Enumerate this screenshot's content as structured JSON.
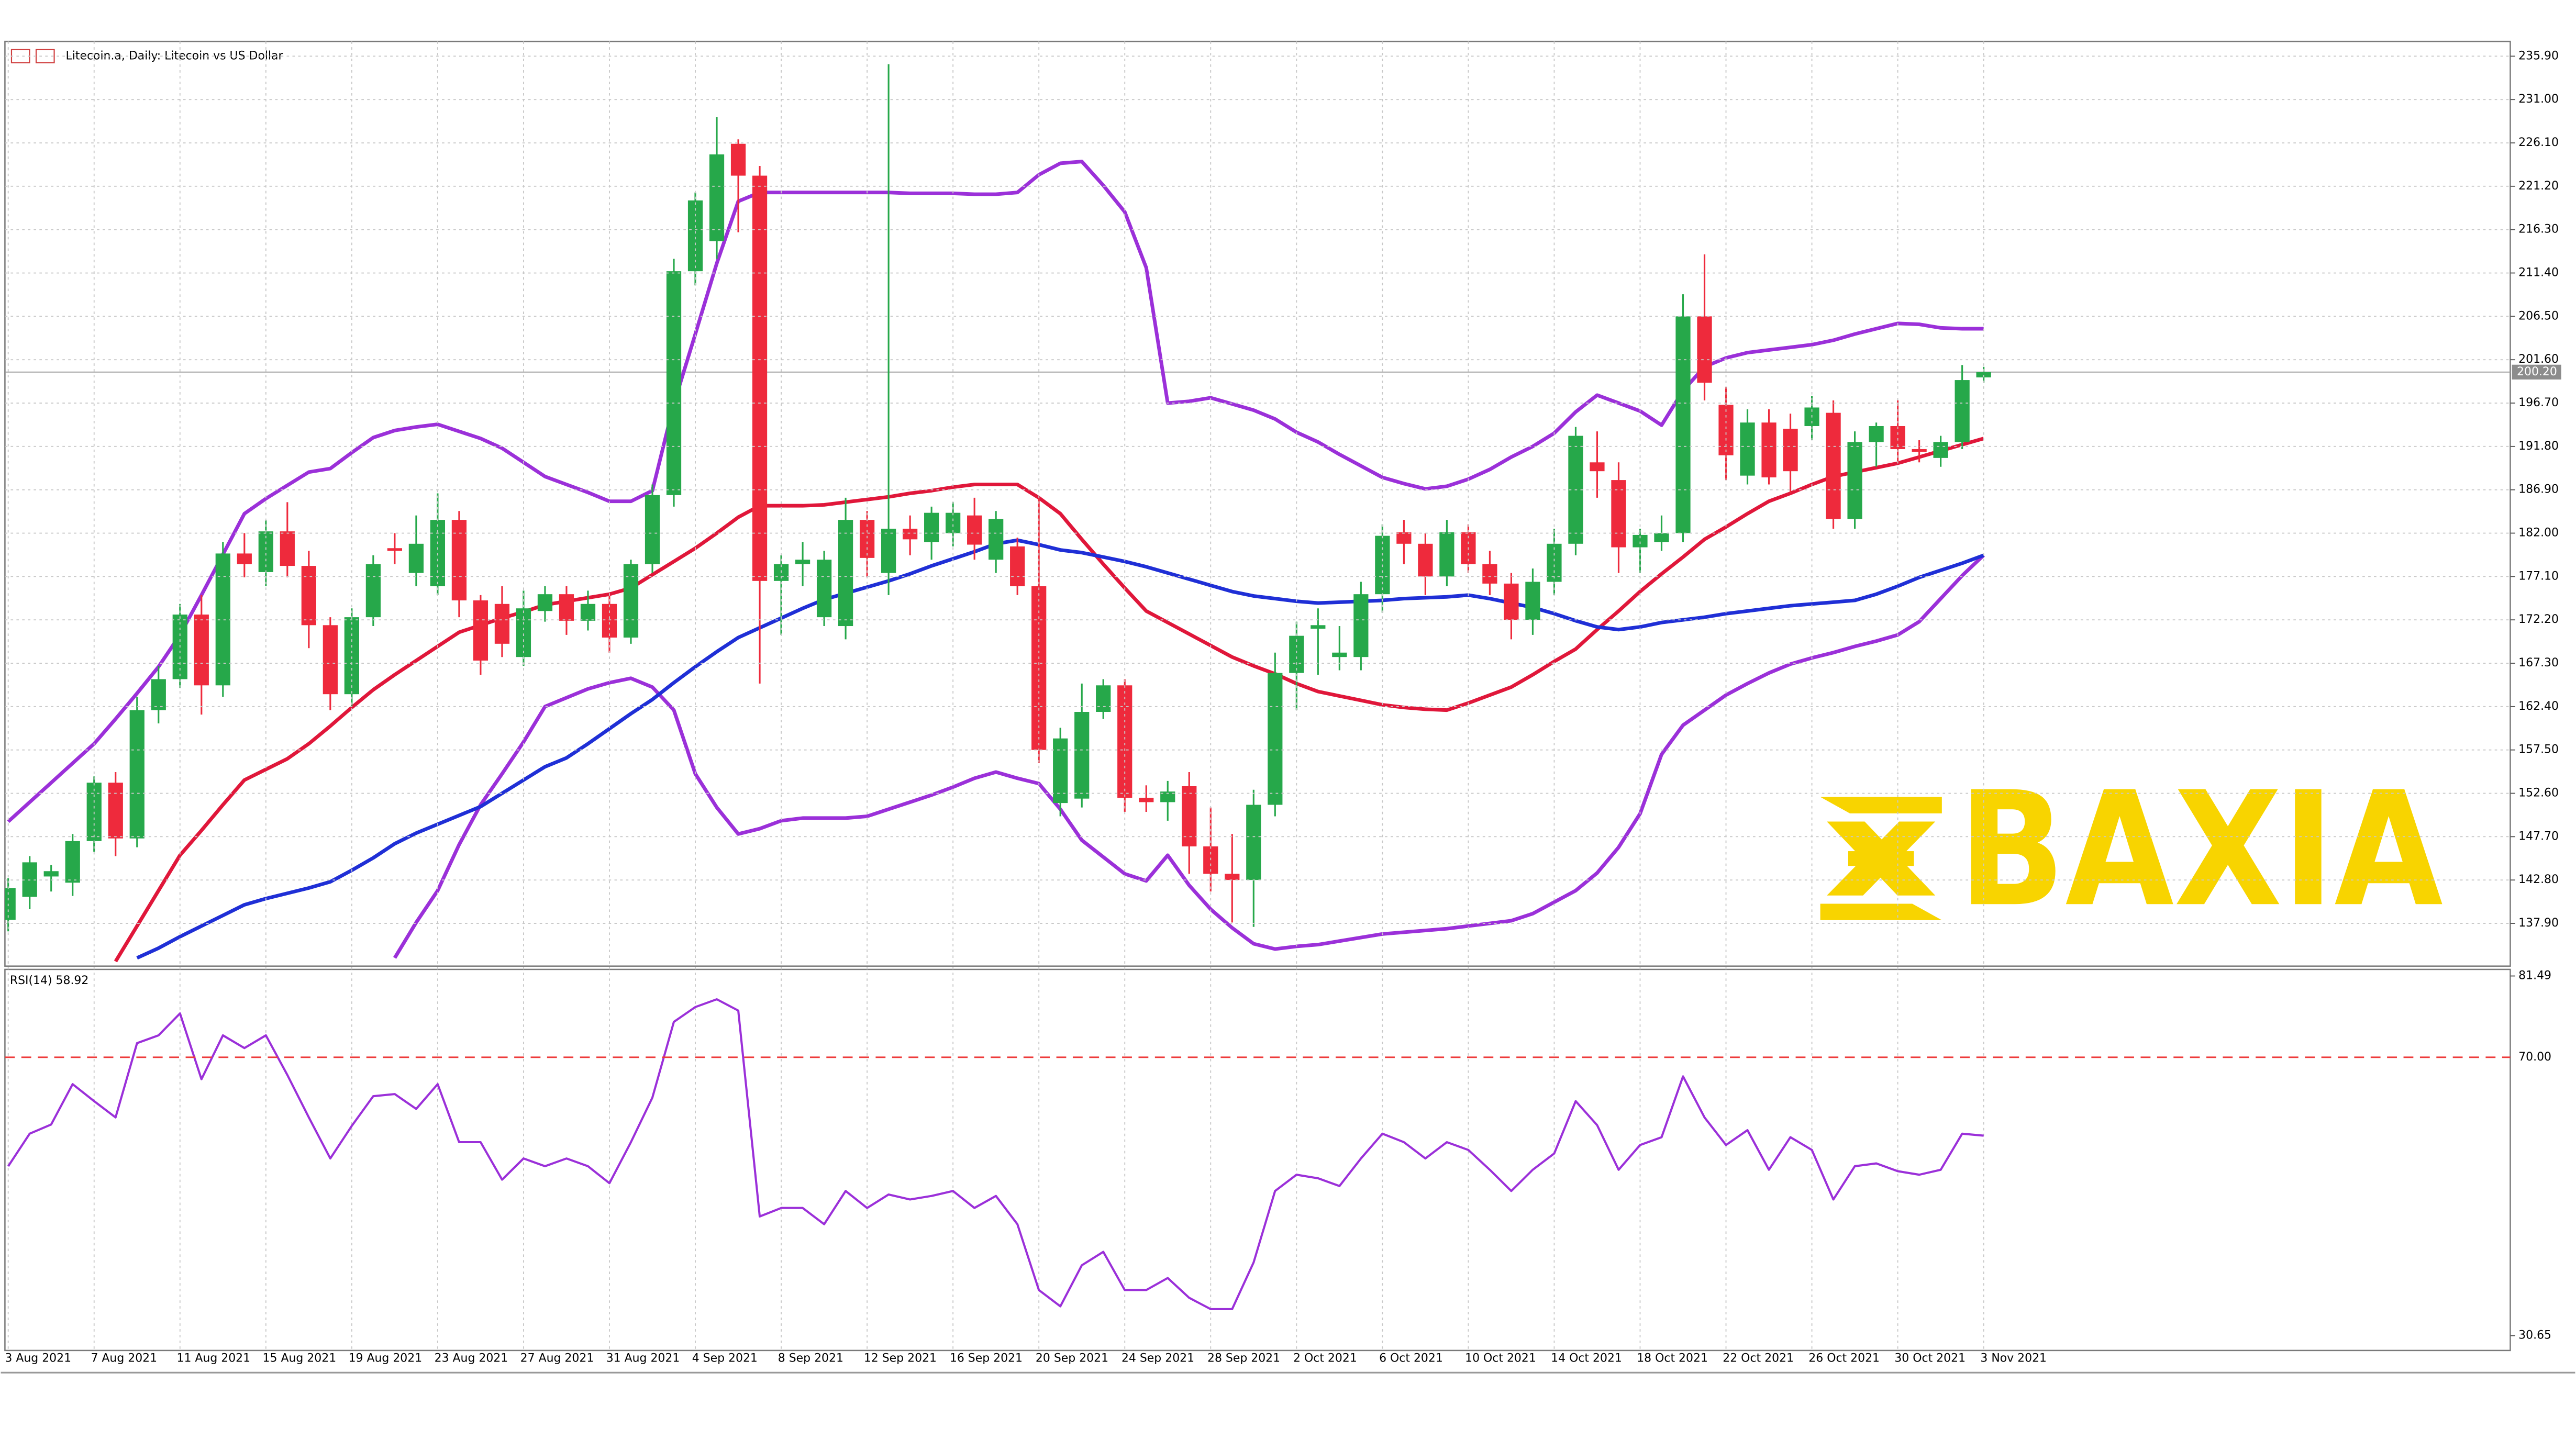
{
  "chart_data": [
    {
      "type": "candlestick",
      "title": "Litecoin.a, Daily: Litecoin vs US Dollar",
      "categories": [
        "3 Aug 2021",
        null,
        null,
        null,
        "7 Aug 2021",
        null,
        null,
        null,
        "11 Aug 2021",
        null,
        null,
        null,
        "15 Aug 2021",
        null,
        null,
        null,
        "19 Aug 2021",
        null,
        null,
        null,
        "23 Aug 2021",
        null,
        null,
        null,
        "27 Aug 2021",
        null,
        null,
        null,
        "31 Aug 2021",
        null,
        null,
        null,
        "4 Sep 2021",
        null,
        null,
        null,
        "8 Sep 2021",
        null,
        null,
        null,
        "12 Sep 2021",
        null,
        null,
        null,
        "16 Sep 2021",
        null,
        null,
        null,
        "20 Sep 2021",
        null,
        null,
        null,
        "24 Sep 2021",
        null,
        null,
        null,
        "28 Sep 2021",
        null,
        null,
        null,
        "2 Oct 2021",
        null,
        null,
        null,
        "6 Oct 2021",
        null,
        null,
        null,
        "10 Oct 2021",
        null,
        null,
        null,
        "14 Oct 2021",
        null,
        null,
        null,
        "18 Oct 2021",
        null,
        null,
        null,
        "22 Oct 2021",
        null,
        null,
        null,
        "26 Oct 2021",
        null,
        null,
        null,
        "30 Oct 2021",
        null,
        null,
        null,
        "3 Nov 2021"
      ],
      "open": [
        138.3,
        140.9,
        143.2,
        142.5,
        147.2,
        153.8,
        147.5,
        162.0,
        165.5,
        172.8,
        164.8,
        179.7,
        177.6,
        182.2,
        178.3,
        171.6,
        163.8,
        172.5,
        180.3,
        177.5,
        176.0,
        183.5,
        174.4,
        174.0,
        168.0,
        173.2,
        175.1,
        172.1,
        174.0,
        170.2,
        178.5,
        186.3,
        211.6,
        215.0,
        226.0,
        222.4,
        176.6,
        178.5,
        172.5,
        171.5,
        183.5,
        177.5,
        182.5,
        181.0,
        182.0,
        184.0,
        179.0,
        180.5,
        176.0,
        151.5,
        152.0,
        161.8,
        164.8,
        152.1,
        151.6,
        153.4,
        146.6,
        143.5,
        142.8,
        151.3,
        166.2,
        171.2,
        168.0,
        168.0,
        175.1,
        182.1,
        180.8,
        177.1,
        182.1,
        178.5,
        176.3,
        172.2,
        176.5,
        180.8,
        190.0,
        188.0,
        180.4,
        181.0,
        182.0,
        206.5,
        196.5,
        188.5,
        194.5,
        193.8,
        194.1,
        195.6,
        183.6,
        192.3,
        194.1,
        191.5,
        190.5,
        192.3,
        199.6
      ],
      "high": [
        143.0,
        145.5,
        144.5,
        148.0,
        154.5,
        155.0,
        163.5,
        167.0,
        174.0,
        175.0,
        181.0,
        182.0,
        183.5,
        185.5,
        180.0,
        172.5,
        173.5,
        179.5,
        182.0,
        184.0,
        186.5,
        184.5,
        175.0,
        176.0,
        175.5,
        176.0,
        176.0,
        175.5,
        175.0,
        179.0,
        187.5,
        213.0,
        220.5,
        229.0,
        226.5,
        223.5,
        179.5,
        181.0,
        180.0,
        186.0,
        184.5,
        235.0,
        184.0,
        185.0,
        185.5,
        186.0,
        184.5,
        181.5,
        186.0,
        160.0,
        165.0,
        165.5,
        165.5,
        153.5,
        154.0,
        155.0,
        151.0,
        148.0,
        153.0,
        168.5,
        172.0,
        173.5,
        171.5,
        176.5,
        183.0,
        183.5,
        182.0,
        183.5,
        183.0,
        180.0,
        177.5,
        178.0,
        182.5,
        194.0,
        193.5,
        190.0,
        182.5,
        184.0,
        209.0,
        213.5,
        198.5,
        196.0,
        196.0,
        195.5,
        197.5,
        197.0,
        193.5,
        194.5,
        197.0,
        192.5,
        193.0,
        201.0,
        200.8
      ],
      "low": [
        137.0,
        139.5,
        141.5,
        141.0,
        146.0,
        145.5,
        146.5,
        160.5,
        164.5,
        161.5,
        163.5,
        177.0,
        176.0,
        177.0,
        169.0,
        162.0,
        162.5,
        171.5,
        178.5,
        176.0,
        175.0,
        172.5,
        166.0,
        168.0,
        167.0,
        172.0,
        170.5,
        171.0,
        168.5,
        169.5,
        177.5,
        185.0,
        210.0,
        213.0,
        216.0,
        165.0,
        170.5,
        176.0,
        171.5,
        170.0,
        177.0,
        175.0,
        179.5,
        179.0,
        180.5,
        179.0,
        177.5,
        175.0,
        156.0,
        150.0,
        151.0,
        161.0,
        150.5,
        150.5,
        149.5,
        143.5,
        141.5,
        138.0,
        137.5,
        150.0,
        162.0,
        166.0,
        166.5,
        166.5,
        173.0,
        178.5,
        175.0,
        176.0,
        177.5,
        175.0,
        170.0,
        170.5,
        175.0,
        179.5,
        186.0,
        177.5,
        177.5,
        180.0,
        181.0,
        197.0,
        188.0,
        187.5,
        187.5,
        186.5,
        192.5,
        182.5,
        182.5,
        189.5,
        190.0,
        190.0,
        189.5,
        191.5,
        199.0
      ],
      "close": [
        141.9,
        144.8,
        143.8,
        147.2,
        153.8,
        147.5,
        162.0,
        165.5,
        172.8,
        164.8,
        179.7,
        178.5,
        182.2,
        178.3,
        171.6,
        163.8,
        172.5,
        178.5,
        180.0,
        180.8,
        183.5,
        174.4,
        167.6,
        169.5,
        173.5,
        175.1,
        172.1,
        174.0,
        170.2,
        178.5,
        186.3,
        211.6,
        219.6,
        224.8,
        222.4,
        176.6,
        178.5,
        179.0,
        179.0,
        183.5,
        179.2,
        182.5,
        181.3,
        184.3,
        184.3,
        180.7,
        183.6,
        176.0,
        157.5,
        158.8,
        161.8,
        164.8,
        152.1,
        151.6,
        152.8,
        146.6,
        143.5,
        142.8,
        151.3,
        166.2,
        170.4,
        171.6,
        168.5,
        175.1,
        181.7,
        180.8,
        177.1,
        182.1,
        178.5,
        176.3,
        172.2,
        176.5,
        180.8,
        193.0,
        189.0,
        180.4,
        181.8,
        182.0,
        206.5,
        199.0,
        190.8,
        194.5,
        188.3,
        189.0,
        196.2,
        183.6,
        192.3,
        194.1,
        191.5,
        191.2,
        192.3,
        199.3,
        200.2
      ],
      "up_color": "#26a84a",
      "down_color": "#ee2a3c",
      "series": [
        {
          "color": "#9b30d9",
          "values": [
            149.4,
            151.6,
            153.8,
            156.0,
            158.2,
            161.0,
            163.9,
            166.9,
            170.5,
            175.0,
            179.6,
            184.2,
            185.9,
            187.4,
            188.9,
            189.3,
            191.1,
            192.8,
            193.6,
            194.0,
            194.3,
            193.5,
            192.7,
            191.6,
            190.0,
            188.4,
            187.5,
            186.6,
            185.6,
            185.6,
            186.8,
            196.6,
            204.5,
            212.5,
            219.5,
            220.5,
            220.5,
            220.5,
            220.5,
            220.5,
            220.5,
            220.5,
            220.4,
            220.4,
            220.4,
            220.3,
            220.3,
            220.5,
            222.5,
            223.8,
            224.0,
            221.3,
            218.3,
            212.0,
            196.7,
            196.9,
            197.3,
            196.6,
            195.9,
            194.9,
            193.4,
            192.3,
            190.9,
            189.6,
            188.3,
            187.6,
            187.0,
            187.3,
            188.1,
            189.2,
            190.6,
            191.8,
            193.3,
            195.7,
            197.6,
            196.7,
            195.8,
            194.2,
            198.1,
            200.8,
            201.8,
            202.4,
            202.7,
            203.0,
            203.3,
            203.8,
            204.5,
            205.1,
            205.7,
            205.6,
            205.2,
            205.1,
            205.1
          ]
        },
        {
          "color": "#9b30d9",
          "values": [
            null,
            null,
            null,
            null,
            null,
            null,
            null,
            null,
            null,
            null,
            null,
            null,
            null,
            null,
            null,
            null,
            null,
            null,
            134.0,
            138.0,
            141.6,
            146.8,
            151.3,
            154.8,
            158.4,
            162.4,
            163.4,
            164.4,
            165.1,
            165.6,
            164.6,
            162.0,
            154.8,
            151.0,
            148.0,
            148.6,
            149.5,
            149.8,
            149.8,
            149.8,
            150.0,
            150.8,
            151.6,
            152.4,
            153.3,
            154.3,
            155.0,
            154.3,
            153.7,
            150.8,
            147.3,
            145.4,
            143.5,
            142.7,
            145.6,
            142.2,
            139.5,
            137.4,
            135.6,
            135.0,
            135.3,
            135.5,
            135.9,
            136.3,
            136.7,
            136.9,
            137.1,
            137.3,
            137.6,
            137.9,
            138.2,
            139.0,
            140.3,
            141.6,
            143.6,
            146.5,
            150.3,
            157.0,
            160.3,
            162.0,
            163.7,
            165.0,
            166.2,
            167.2,
            167.9,
            168.5,
            169.2,
            169.8,
            170.5,
            172.0,
            174.6,
            177.2,
            179.5
          ]
        },
        {
          "color": "#e0173a",
          "values": [
            null,
            null,
            null,
            null,
            null,
            133.6,
            137.6,
            141.6,
            145.6,
            148.4,
            151.3,
            154.1,
            155.3,
            156.5,
            158.2,
            160.2,
            162.3,
            164.3,
            166.0,
            167.6,
            169.2,
            170.8,
            171.6,
            172.4,
            173.1,
            173.9,
            174.3,
            174.7,
            175.1,
            175.8,
            177.3,
            178.8,
            180.3,
            182.0,
            183.8,
            185.1,
            185.1,
            185.1,
            185.2,
            185.5,
            185.8,
            186.1,
            186.5,
            186.8,
            187.2,
            187.5,
            187.5,
            187.5,
            186.0,
            184.2,
            181.3,
            178.5,
            175.8,
            173.2,
            171.9,
            170.6,
            169.3,
            168.0,
            167.0,
            166.1,
            165.0,
            164.1,
            163.6,
            163.1,
            162.6,
            162.3,
            162.1,
            162.0,
            162.8,
            163.7,
            164.6,
            166.0,
            167.5,
            168.9,
            171.1,
            173.2,
            175.4,
            177.4,
            179.3,
            181.3,
            182.7,
            184.2,
            185.6,
            186.5,
            187.5,
            188.4,
            188.9,
            189.4,
            189.9,
            190.6,
            191.3,
            192.0,
            192.7
          ]
        },
        {
          "color": "#1f2fd6",
          "values": [
            null,
            null,
            null,
            null,
            null,
            null,
            134.0,
            135.1,
            136.4,
            137.6,
            138.8,
            140.0,
            140.7,
            141.3,
            141.9,
            142.6,
            143.9,
            145.3,
            146.9,
            148.1,
            149.1,
            150.1,
            151.1,
            152.6,
            154.1,
            155.6,
            156.6,
            158.2,
            159.9,
            161.6,
            163.2,
            165.1,
            166.9,
            168.6,
            170.2,
            171.3,
            172.4,
            173.5,
            174.5,
            175.2,
            175.9,
            176.6,
            177.4,
            178.3,
            179.1,
            179.9,
            180.8,
            181.2,
            180.7,
            180.1,
            179.8,
            179.3,
            178.8,
            178.2,
            177.5,
            176.8,
            176.1,
            175.4,
            174.9,
            174.6,
            174.3,
            174.1,
            174.2,
            174.3,
            174.4,
            174.6,
            174.7,
            174.8,
            175.0,
            174.6,
            174.1,
            173.6,
            172.9,
            172.1,
            171.4,
            171.1,
            171.4,
            171.9,
            172.2,
            172.5,
            172.9,
            173.2,
            173.5,
            173.8,
            174.0,
            174.2,
            174.4,
            175.1,
            176.0,
            177.0,
            177.8,
            178.6,
            179.5
          ]
        }
      ],
      "last_price": {
        "value": 200.2,
        "label": "200.20"
      },
      "ylim": [
        133.07,
        237.57
      ],
      "yticks": [
        {
          "value": 137.9,
          "label": "137.90"
        },
        {
          "value": 142.8,
          "label": "142.80"
        },
        {
          "value": 147.7,
          "label": "147.70"
        },
        {
          "value": 152.6,
          "label": "152.60"
        },
        {
          "value": 157.5,
          "label": "157.50"
        },
        {
          "value": 162.4,
          "label": "162.40"
        },
        {
          "value": 167.3,
          "label": "167.30"
        },
        {
          "value": 172.2,
          "label": "172.20"
        },
        {
          "value": 177.1,
          "label": "177.10"
        },
        {
          "value": 182,
          "label": "182.00"
        },
        {
          "value": 186.9,
          "label": "186.90"
        },
        {
          "value": 191.8,
          "label": "191.80"
        },
        {
          "value": 196.7,
          "label": "196.70"
        },
        {
          "value": 201.6,
          "label": "201.60"
        },
        {
          "value": 206.5,
          "label": "206.50"
        },
        {
          "value": 211.4,
          "label": "211.40"
        },
        {
          "value": 216.3,
          "label": "216.30"
        },
        {
          "value": 221.2,
          "label": "221.20"
        },
        {
          "value": 226.1,
          "label": "226.10"
        },
        {
          "value": 231,
          "label": "231.00"
        },
        {
          "value": 235.9,
          "label": "235.90"
        }
      ],
      "grid": true
    },
    {
      "type": "line",
      "title": "RSI(14) 58.92",
      "color": "#9b30d9",
      "values": [
        54.6,
        59.2,
        60.5,
        66.2,
        63.8,
        61.5,
        72.0,
        73.1,
        76.2,
        66.9,
        73.1,
        71.3,
        73.1,
        67.5,
        61.5,
        55.7,
        60.3,
        64.5,
        64.8,
        62.7,
        66.2,
        58.0,
        58.0,
        52.7,
        55.7,
        54.6,
        55.7,
        54.6,
        52.2,
        58.0,
        64.3,
        75.0,
        77.1,
        78.2,
        76.6,
        47.5,
        48.7,
        48.7,
        46.4,
        51.1,
        48.7,
        50.6,
        49.9,
        50.4,
        51.1,
        48.7,
        50.4,
        46.4,
        37.1,
        34.8,
        40.6,
        42.5,
        37.1,
        37.1,
        38.8,
        36.0,
        34.4,
        34.4,
        41.0,
        51.1,
        53.4,
        52.9,
        51.8,
        55.7,
        59.2,
        58.0,
        55.7,
        58.0,
        56.9,
        54.1,
        51.1,
        54.1,
        56.4,
        63.8,
        60.4,
        54.1,
        57.6,
        58.7,
        67.3,
        61.5,
        57.6,
        59.7,
        54.1,
        58.7,
        56.9,
        49.9,
        54.6,
        55.0,
        53.9,
        53.4,
        54.1,
        59.2,
        58.92
      ],
      "ylim": [
        28.56,
        82.42
      ],
      "yticks": [
        81.49,
        30.65
      ],
      "levels": [
        {
          "value": 70,
          "label": "70.00",
          "color": "#ee3b3b"
        }
      ]
    }
  ],
  "watermark": "BAXIA"
}
